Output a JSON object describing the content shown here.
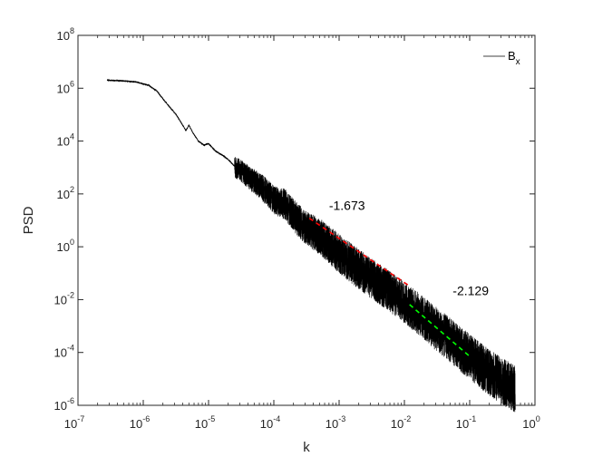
{
  "chart_data": {
    "type": "line",
    "title": "",
    "xlabel": "k",
    "ylabel": "PSD",
    "x_scale": "log",
    "y_scale": "log",
    "xlim": [
      1e-07,
      1
    ],
    "ylim": [
      1e-06,
      100000000.0
    ],
    "grid": false,
    "legend": {
      "position": "top-right",
      "entries": [
        {
          "base": "B",
          "sub": "x"
        }
      ]
    },
    "x_ticks": [
      {
        "value": 1e-07,
        "base": "10",
        "exp": "-7"
      },
      {
        "value": 1e-06,
        "base": "10",
        "exp": "-6"
      },
      {
        "value": 1e-05,
        "base": "10",
        "exp": "-5"
      },
      {
        "value": 0.0001,
        "base": "10",
        "exp": "-4"
      },
      {
        "value": 0.001,
        "base": "10",
        "exp": "-3"
      },
      {
        "value": 0.01,
        "base": "10",
        "exp": "-2"
      },
      {
        "value": 0.1,
        "base": "10",
        "exp": "-1"
      },
      {
        "value": 1,
        "base": "10",
        "exp": "0"
      }
    ],
    "y_ticks": [
      {
        "value": 1e-06,
        "base": "10",
        "exp": "-6"
      },
      {
        "value": 0.0001,
        "base": "10",
        "exp": "-4"
      },
      {
        "value": 0.01,
        "base": "10",
        "exp": "-2"
      },
      {
        "value": 1,
        "base": "10",
        "exp": "0"
      },
      {
        "value": 100.0,
        "base": "10",
        "exp": "2"
      },
      {
        "value": 10000.0,
        "base": "10",
        "exp": "4"
      },
      {
        "value": 1000000.0,
        "base": "10",
        "exp": "6"
      },
      {
        "value": 100000000.0,
        "base": "10",
        "exp": "8"
      }
    ],
    "series": [
      {
        "name": "Bx",
        "color": "#000000",
        "points": [
          [
            2.8e-07,
            2000000.0
          ],
          [
            5e-07,
            1900000.0
          ],
          [
            8e-07,
            1700000.0
          ],
          [
            1.2e-06,
            1300000.0
          ],
          [
            1.6e-06,
            800000.0
          ],
          [
            2e-06,
            400000.0
          ],
          [
            2.6e-06,
            180000.0
          ],
          [
            3.2e-06,
            100000.0
          ],
          [
            3.8e-06,
            50000.0
          ],
          [
            4.5e-06,
            25000.0
          ],
          [
            5e-06,
            40000.0
          ],
          [
            5.8e-06,
            20000.0
          ],
          [
            7e-06,
            10000.0
          ],
          [
            8.5e-06,
            7000.0
          ],
          [
            1e-05,
            8000.0
          ],
          [
            1.3e-05,
            4000.0
          ],
          [
            1.6e-05,
            3000.0
          ],
          [
            2e-05,
            2000.0
          ],
          [
            2.6e-05,
            1000.0
          ],
          [
            3.3e-05,
            700.0
          ],
          [
            4.2e-05,
            400.0
          ],
          [
            5.5e-05,
            250.0
          ],
          [
            7e-05,
            150.0
          ],
          [
            0.0001,
            60
          ],
          [
            0.00015,
            40
          ],
          [
            0.00022,
            12
          ],
          [
            0.00032,
            5
          ],
          [
            0.0005,
            2.5
          ],
          [
            0.0007,
            1.2
          ],
          [
            0.001,
            0.55
          ],
          [
            0.0015,
            0.25
          ],
          [
            0.0022,
            0.12
          ],
          [
            0.0032,
            0.06
          ],
          [
            0.005,
            0.028
          ],
          [
            0.007,
            0.015
          ],
          [
            0.01,
            0.008
          ],
          [
            0.015,
            0.0035
          ],
          [
            0.022,
            0.0016
          ],
          [
            0.032,
            0.0007
          ],
          [
            0.05,
            0.0003
          ],
          [
            0.07,
            0.00014
          ],
          [
            0.1,
            7e-05
          ],
          [
            0.15,
            3e-05
          ],
          [
            0.22,
            1.5e-05
          ],
          [
            0.32,
            8e-06
          ],
          [
            0.5,
            4e-06
          ]
        ]
      }
    ],
    "noise_band": [
      [
        2.5e-05,
        0.4
      ],
      [
        0.0001,
        0.55
      ],
      [
        0.0003,
        0.65
      ],
      [
        0.001,
        0.75
      ],
      [
        0.01,
        0.8
      ],
      [
        0.05,
        0.85
      ],
      [
        0.5,
        0.9
      ]
    ],
    "fits": [
      {
        "slope": -1.673,
        "label": "-1.673",
        "color": "#ff0000",
        "x_start": 0.00035,
        "x_end": 0.012,
        "y_start": 12
      },
      {
        "slope": -2.129,
        "label": "-2.129",
        "color": "#00ff00",
        "x_start": 0.012,
        "x_end": 0.1,
        "y_start": 0.0065
      }
    ],
    "annotations": [
      {
        "text": "-1.673",
        "x": 0.0007,
        "y": 25
      },
      {
        "text": "-2.129",
        "x": 0.055,
        "y": 0.015
      }
    ]
  }
}
